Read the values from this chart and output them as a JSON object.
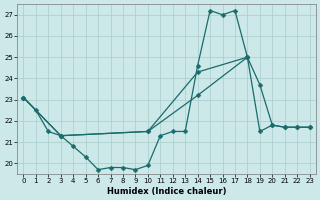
{
  "xlabel": "Humidex (Indice chaleur)",
  "bg_color": "#cce8e8",
  "grid_color": "#aacccc",
  "line_color": "#1a6b6b",
  "xlim": [
    -0.5,
    23.5
  ],
  "ylim": [
    19.5,
    27.5
  ],
  "xticks": [
    0,
    1,
    2,
    3,
    4,
    5,
    6,
    7,
    8,
    9,
    10,
    11,
    12,
    13,
    14,
    15,
    16,
    17,
    18,
    19,
    20,
    21,
    22,
    23
  ],
  "yticks": [
    20,
    21,
    22,
    23,
    24,
    25,
    26,
    27
  ],
  "line1_x": [
    0,
    1,
    2,
    3,
    4,
    5,
    6,
    7,
    8,
    9,
    10,
    11,
    12,
    13,
    14,
    15,
    16,
    17,
    18,
    19,
    20,
    21,
    22,
    23
  ],
  "line1_y": [
    23.1,
    22.5,
    21.5,
    21.3,
    20.8,
    20.3,
    19.7,
    19.8,
    19.8,
    19.7,
    19.9,
    21.3,
    21.5,
    21.5,
    24.6,
    27.2,
    27.0,
    27.2,
    25.0,
    21.5,
    21.8,
    21.7,
    21.7,
    21.7
  ],
  "line2_x": [
    0,
    3,
    10,
    14,
    18,
    19,
    20,
    21,
    22,
    23
  ],
  "line2_y": [
    23.1,
    21.3,
    21.5,
    23.2,
    25.0,
    23.7,
    21.8,
    21.7,
    21.7,
    21.7
  ],
  "line3_x": [
    0,
    3,
    10,
    14,
    18
  ],
  "line3_y": [
    23.1,
    21.3,
    21.5,
    24.3,
    25.0
  ]
}
